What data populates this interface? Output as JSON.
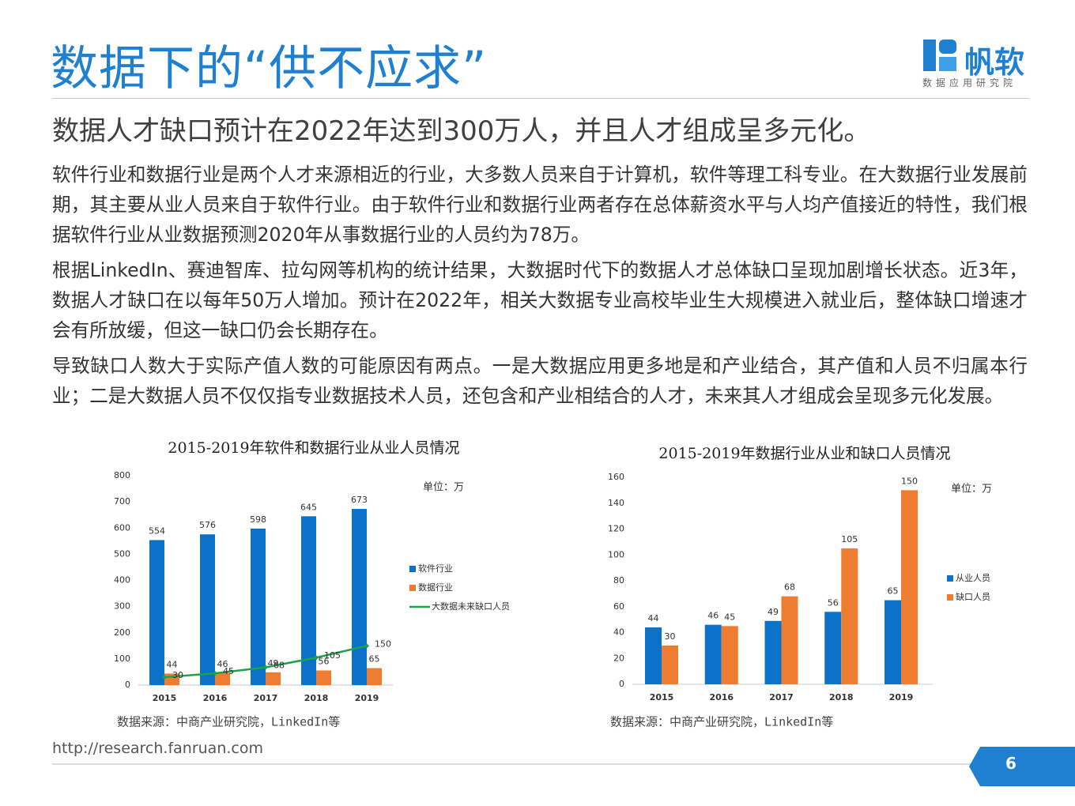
{
  "header": {
    "title": "数据下的“供不应求”",
    "logo_name": "帆软",
    "logo_sub": "数据应用研究院"
  },
  "subtitle": "数据人才缺口预计在2022年达到300万人，并且人才组成呈多元化。",
  "paragraphs": [
    "软件行业和数据行业是两个人才来源相近的行业，大多数人员来自于计算机，软件等理工科专业。在大数据行业发展前期，其主要从业人员来自于软件行业。由于软件行业和数据行业两者存在总体薪资水平与人均产值接近的特性，我们根据软件行业从业数据预测2020年从事数据行业的人员约为78万。",
    "根据LinkedIn、赛迪智库、拉勾网等机构的统计结果，大数据时代下的数据人才总体缺口呈现加剧增长状态。近3年，数据人才缺口在以每年50万人增加。预计在2022年，相关大数据专业高校毕业生大规模进入就业后，整体缺口增速才会有所放缓，但这一缺口仍会长期存在。",
    "导致缺口人数大于实际产值人数的可能原因有两点。一是大数据应用更多地是和产业结合，其产值和人员不归属本行业；二是大数据人员不仅仅指专业数据技术人员，还包含和产业相结合的人才，未来其人才组成会呈现多元化发展。"
  ],
  "chart_data": [
    {
      "type": "bar",
      "title": "2015-2019年软件和数据行业从业人员情况",
      "unit": "单位：万",
      "source": "数据来源：中商产业研究院，LinkedIn等",
      "categories": [
        "2015",
        "2016",
        "2017",
        "2018",
        "2019"
      ],
      "series": [
        {
          "name": "软件行业",
          "color": "#0a72c8",
          "values": [
            554,
            576,
            598,
            645,
            673
          ]
        },
        {
          "name": "数据行业",
          "color": "#ef7d31",
          "values": [
            44,
            46,
            49,
            56,
            65
          ]
        },
        {
          "name": "大数据未来缺口人员",
          "type": "line",
          "color": "#1aa34a",
          "values": [
            30,
            45,
            68,
            105,
            150
          ]
        }
      ],
      "ylim": [
        0,
        800
      ],
      "yticks": [
        0,
        100,
        200,
        300,
        400,
        500,
        600,
        700,
        800
      ],
      "grid": false
    },
    {
      "type": "bar",
      "title": "2015-2019年数据行业从业和缺口人员情况",
      "unit": "单位：万",
      "source": "数据来源：中商产业研究院，LinkedIn等",
      "categories": [
        "2015",
        "2016",
        "2017",
        "2018",
        "2019"
      ],
      "series": [
        {
          "name": "从业人员",
          "color": "#0a72c8",
          "values": [
            44,
            46,
            49,
            56,
            65
          ]
        },
        {
          "name": "缺口人员",
          "color": "#ef7d31",
          "values": [
            30,
            45,
            68,
            105,
            150
          ]
        }
      ],
      "ylim": [
        0,
        160
      ],
      "yticks": [
        0,
        20,
        40,
        60,
        80,
        100,
        120,
        140,
        160
      ],
      "grid": false
    }
  ],
  "footer": {
    "url": "http://research.fanruan.com",
    "page": 6
  }
}
